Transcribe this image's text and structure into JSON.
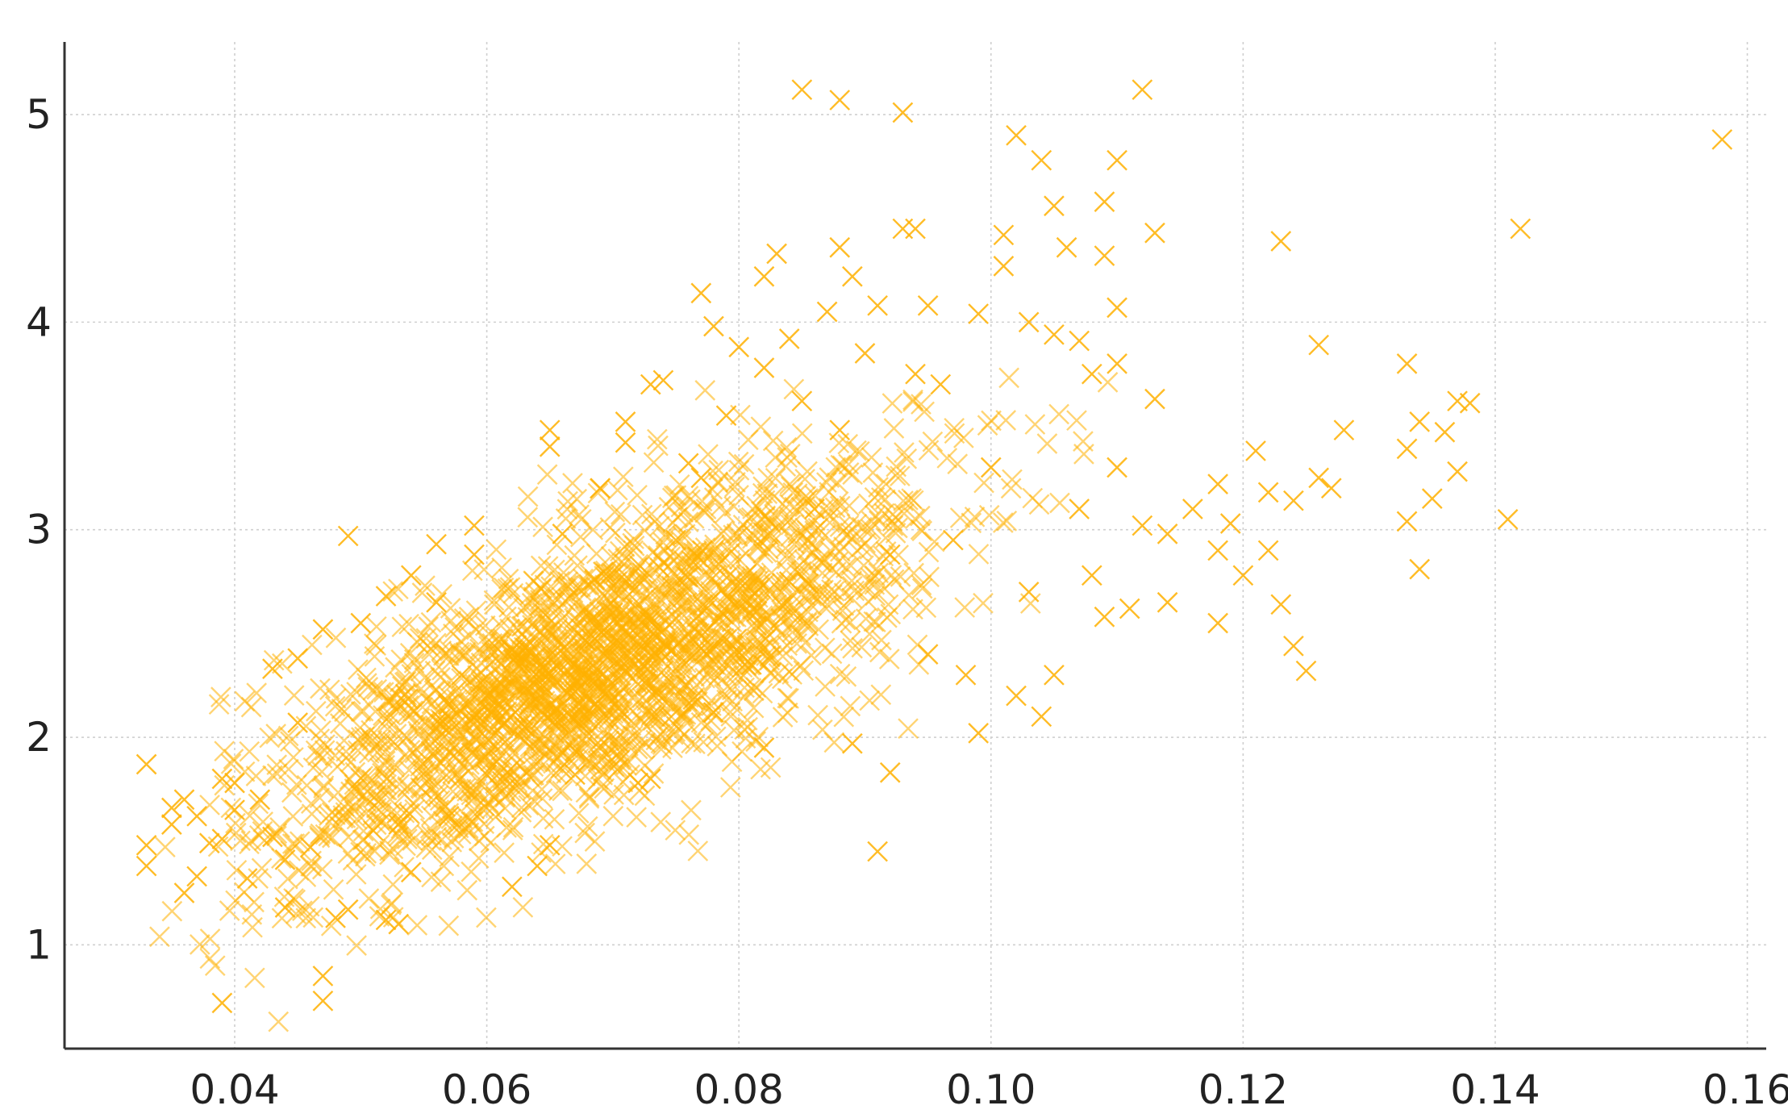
{
  "chart_data": {
    "type": "scatter",
    "title": "",
    "xlabel": "",
    "ylabel": "",
    "xlim": [
      0.0265,
      0.1615
    ],
    "ylim": [
      0.5,
      5.35
    ],
    "grid": true,
    "marker": "x",
    "color": "#FFB000",
    "x_ticks": [
      {
        "value": 0.04,
        "label": "0.04"
      },
      {
        "value": 0.06,
        "label": "0.06"
      },
      {
        "value": 0.08,
        "label": "0.08"
      },
      {
        "value": 0.1,
        "label": "0.10"
      },
      {
        "value": 0.12,
        "label": "0.12"
      },
      {
        "value": 0.14,
        "label": "0.14"
      },
      {
        "value": 0.16,
        "label": "0.16"
      }
    ],
    "y_ticks": [
      {
        "value": 1,
        "label": "1"
      },
      {
        "value": 2,
        "label": "2"
      },
      {
        "value": 3,
        "label": "3"
      },
      {
        "value": 4,
        "label": "4"
      },
      {
        "value": 5,
        "label": "5"
      }
    ],
    "series": [
      {
        "points": [
          [
            0.033,
            1.87
          ],
          [
            0.033,
            1.48
          ],
          [
            0.033,
            1.38
          ],
          [
            0.035,
            1.58
          ],
          [
            0.035,
            1.66
          ],
          [
            0.036,
            1.25
          ],
          [
            0.036,
            1.7
          ],
          [
            0.037,
            1.33
          ],
          [
            0.037,
            1.62
          ],
          [
            0.038,
            1.49
          ],
          [
            0.039,
            1.51
          ],
          [
            0.039,
            0.72
          ],
          [
            0.039,
            1.8
          ],
          [
            0.04,
            1.78
          ],
          [
            0.04,
            1.65
          ],
          [
            0.041,
            1.32
          ],
          [
            0.042,
            1.7
          ],
          [
            0.043,
            1.52
          ],
          [
            0.043,
            2.33
          ],
          [
            0.044,
            1.18
          ],
          [
            0.044,
            1.41
          ],
          [
            0.045,
            2.38
          ],
          [
            0.045,
            2.07
          ],
          [
            0.046,
            1.47
          ],
          [
            0.047,
            0.85
          ],
          [
            0.047,
            0.73
          ],
          [
            0.047,
            2.52
          ],
          [
            0.048,
            1.13
          ],
          [
            0.049,
            1.17
          ],
          [
            0.049,
            2.97
          ],
          [
            0.05,
            2.55
          ],
          [
            0.051,
            1.55
          ],
          [
            0.052,
            1.12
          ],
          [
            0.052,
            2.68
          ],
          [
            0.053,
            1.1
          ],
          [
            0.053,
            1.58
          ],
          [
            0.054,
            1.35
          ],
          [
            0.054,
            2.78
          ],
          [
            0.056,
            2.93
          ],
          [
            0.056,
            2.65
          ],
          [
            0.057,
            1.62
          ],
          [
            0.058,
            2.3
          ],
          [
            0.059,
            3.02
          ],
          [
            0.059,
            2.88
          ],
          [
            0.06,
            1.82
          ],
          [
            0.06,
            2.2
          ],
          [
            0.062,
            1.28
          ],
          [
            0.062,
            2.42
          ],
          [
            0.063,
            2.05
          ],
          [
            0.064,
            1.38
          ],
          [
            0.065,
            1.48
          ],
          [
            0.065,
            3.48
          ],
          [
            0.065,
            3.4
          ],
          [
            0.066,
            2.98
          ],
          [
            0.067,
            1.82
          ],
          [
            0.067,
            2.22
          ],
          [
            0.069,
            3.2
          ],
          [
            0.07,
            2.6
          ],
          [
            0.071,
            3.52
          ],
          [
            0.071,
            3.42
          ],
          [
            0.072,
            1.78
          ],
          [
            0.073,
            1.8
          ],
          [
            0.073,
            3.7
          ],
          [
            0.074,
            3.72
          ],
          [
            0.075,
            2.95
          ],
          [
            0.076,
            3.32
          ],
          [
            0.077,
            3.25
          ],
          [
            0.077,
            4.14
          ],
          [
            0.078,
            3.98
          ],
          [
            0.078,
            2.12
          ],
          [
            0.079,
            3.55
          ],
          [
            0.08,
            3.88
          ],
          [
            0.081,
            2.35
          ],
          [
            0.082,
            3.78
          ],
          [
            0.082,
            4.22
          ],
          [
            0.082,
            1.95
          ],
          [
            0.083,
            4.33
          ],
          [
            0.084,
            3.92
          ],
          [
            0.084,
            2.75
          ],
          [
            0.085,
            5.12
          ],
          [
            0.085,
            3.62
          ],
          [
            0.086,
            3.1
          ],
          [
            0.087,
            4.05
          ],
          [
            0.088,
            5.07
          ],
          [
            0.088,
            4.36
          ],
          [
            0.088,
            3.48
          ],
          [
            0.089,
            4.22
          ],
          [
            0.089,
            1.97
          ],
          [
            0.09,
            3.85
          ],
          [
            0.091,
            1.45
          ],
          [
            0.091,
            4.08
          ],
          [
            0.092,
            1.83
          ],
          [
            0.092,
            2.88
          ],
          [
            0.093,
            5.01
          ],
          [
            0.093,
            4.45
          ],
          [
            0.094,
            4.45
          ],
          [
            0.094,
            3.75
          ],
          [
            0.095,
            4.08
          ],
          [
            0.095,
            2.4
          ],
          [
            0.096,
            3.7
          ],
          [
            0.097,
            2.95
          ],
          [
            0.098,
            2.3
          ],
          [
            0.099,
            2.02
          ],
          [
            0.099,
            4.04
          ],
          [
            0.1,
            3.3
          ],
          [
            0.101,
            4.42
          ],
          [
            0.101,
            4.27
          ],
          [
            0.102,
            4.9
          ],
          [
            0.102,
            2.2
          ],
          [
            0.103,
            4.0
          ],
          [
            0.103,
            2.7
          ],
          [
            0.104,
            4.78
          ],
          [
            0.104,
            2.1
          ],
          [
            0.105,
            4.56
          ],
          [
            0.105,
            3.94
          ],
          [
            0.105,
            2.3
          ],
          [
            0.106,
            4.36
          ],
          [
            0.107,
            3.91
          ],
          [
            0.107,
            3.1
          ],
          [
            0.108,
            3.75
          ],
          [
            0.108,
            2.78
          ],
          [
            0.109,
            4.58
          ],
          [
            0.109,
            4.32
          ],
          [
            0.109,
            2.58
          ],
          [
            0.11,
            4.78
          ],
          [
            0.11,
            4.07
          ],
          [
            0.11,
            3.8
          ],
          [
            0.11,
            3.3
          ],
          [
            0.111,
            2.62
          ],
          [
            0.112,
            5.12
          ],
          [
            0.112,
            3.02
          ],
          [
            0.113,
            4.43
          ],
          [
            0.113,
            3.63
          ],
          [
            0.114,
            2.98
          ],
          [
            0.114,
            2.65
          ],
          [
            0.116,
            3.1
          ],
          [
            0.118,
            3.22
          ],
          [
            0.118,
            2.9
          ],
          [
            0.118,
            2.55
          ],
          [
            0.119,
            3.03
          ],
          [
            0.12,
            2.78
          ],
          [
            0.121,
            3.38
          ],
          [
            0.122,
            3.18
          ],
          [
            0.122,
            2.9
          ],
          [
            0.123,
            4.39
          ],
          [
            0.123,
            2.64
          ],
          [
            0.124,
            3.14
          ],
          [
            0.124,
            2.44
          ],
          [
            0.125,
            2.32
          ],
          [
            0.126,
            3.89
          ],
          [
            0.126,
            3.25
          ],
          [
            0.127,
            3.2
          ],
          [
            0.128,
            3.48
          ],
          [
            0.133,
            3.8
          ],
          [
            0.133,
            3.39
          ],
          [
            0.133,
            3.04
          ],
          [
            0.134,
            3.52
          ],
          [
            0.134,
            2.81
          ],
          [
            0.135,
            3.15
          ],
          [
            0.136,
            3.47
          ],
          [
            0.137,
            3.28
          ],
          [
            0.137,
            3.62
          ],
          [
            0.138,
            3.61
          ],
          [
            0.141,
            3.05
          ],
          [
            0.142,
            4.45
          ],
          [
            0.158,
            4.88
          ]
        ]
      }
    ]
  }
}
